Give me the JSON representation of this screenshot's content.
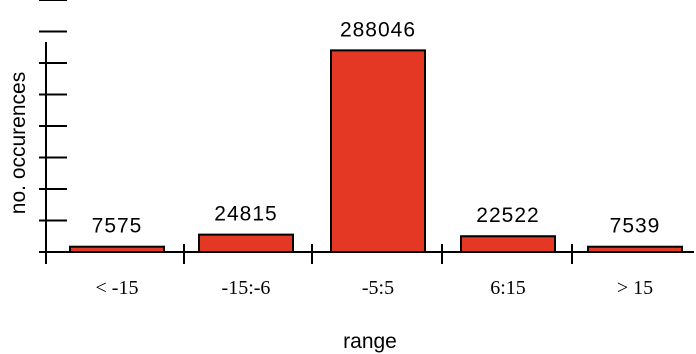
{
  "chart_data": {
    "type": "bar",
    "categories": [
      "< -15",
      "-15:-6",
      "-5:5",
      "6:15",
      "> 15"
    ],
    "values": [
      7575,
      24815,
      288046,
      22522,
      7539
    ],
    "data_labels": [
      "7575",
      "24815",
      "288046",
      "22522",
      "7539"
    ],
    "title": "",
    "xlabel": "range",
    "ylabel": "no. occurences",
    "ylim": [
      0,
      360000
    ],
    "y_tick_labels": false,
    "grid": false,
    "legend": "none",
    "bar_color": "#e43824",
    "bar_edge_color": "#000000"
  }
}
